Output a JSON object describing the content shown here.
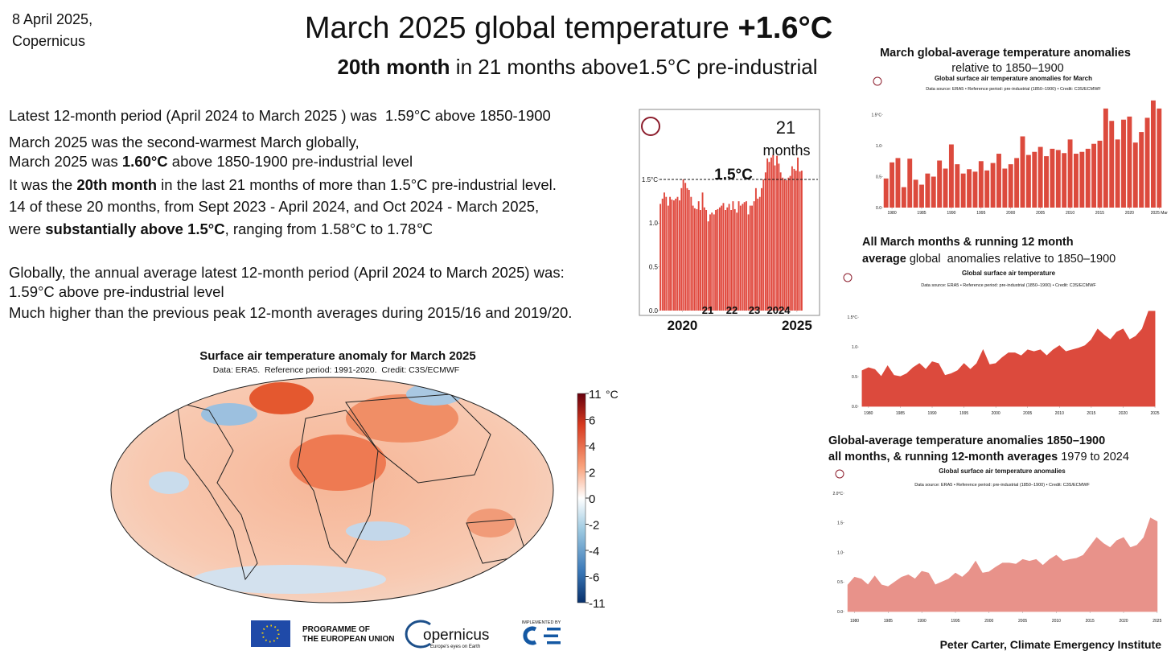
{
  "header": {
    "date": "8 April 2025,",
    "source": "Copernicus",
    "title": [
      {
        "text": "March 2025 global temperature ",
        "bold": false
      },
      {
        "text": "+1.6°C",
        "bold": true
      }
    ],
    "subtitle": [
      {
        "text": "20th month",
        "bold": true
      },
      {
        "text": " in 21 months above1.5°C pre-industrial",
        "bold": false
      }
    ]
  },
  "body": {
    "lines": [
      [
        {
          "text": "Latest 12-month period (April 2024 to March 2025 ) was  1.59°C above 1850-1900",
          "bold": false
        }
      ],
      [
        {
          "text": "March 2025 was the second-warmest March globally,",
          "bold": false
        }
      ],
      [
        {
          "text": "March 2025 was ",
          "bold": false
        },
        {
          "text": "1.60°C",
          "bold": true
        },
        {
          "text": " above 1850-1900 pre-industrial level",
          "bold": false
        }
      ],
      [
        {
          "text": "It was the ",
          "bold": false
        },
        {
          "text": "20th month",
          "bold": true
        },
        {
          "text": " in the last 21 months of more than 1.5°C pre-industrial level.",
          "bold": false
        }
      ],
      [
        {
          "text": "14 of these 20 months, from Sept 2023 - April 2024, and Oct 2024 - March 2025,",
          "bold": false
        }
      ],
      [
        {
          "text": "were ",
          "bold": false
        },
        {
          "text": "substantially above 1.5°C",
          "bold": true
        },
        {
          "text": ", ranging from 1.58°C to 1.78℃",
          "bold": false
        }
      ],
      [
        {
          "text": "Globally, the annual average latest 12-month period (April 2024 to March 2025) was:",
          "bold": false
        }
      ],
      [
        {
          "text": "1.59°C above pre-industrial level",
          "bold": false
        }
      ],
      [
        {
          "text": "Much higher than the previous peak 12-month averages during 2015/16 and 2019/20.",
          "bold": false
        }
      ]
    ]
  },
  "captions": [
    {
      "lines": [
        [
          {
            "text": "March global-average temperature anomalies",
            "bold": true
          }
        ],
        [
          {
            "text": "relative to 1850–1900",
            "bold": false
          }
        ]
      ]
    },
    {
      "lines": [
        [
          {
            "text": "All March months & running 12 month",
            "bold": true
          }
        ],
        [
          {
            "text": "average",
            "bold": true
          },
          {
            "text": " global  anomalies relative to 1850–1900",
            "bold": false
          }
        ]
      ]
    },
    {
      "lines": [
        [
          {
            "text": "Global-average temperature anomalies 1850–1900",
            "bold": true
          }
        ],
        [
          {
            "text": "all months, & running 12-month averages",
            "bold": true
          },
          {
            "text": " 1979 to 2024",
            "bold": false
          }
        ]
      ]
    }
  ],
  "credit": "Peter Carter, Climate Emergency Institute",
  "logos": {
    "eu": [
      "PROGRAMME OF",
      "THE EUROPEAN UNION"
    ],
    "copernicus": "opernicus",
    "copernicus_tagline": "Europe's eyes on Earth",
    "implemented": "IMPLEMENTED BY"
  },
  "chart_data": [
    {
      "type": "bar",
      "color": "#e0473c",
      "x": [
        2019.04,
        2019.13,
        2019.21,
        2019.29,
        2019.38,
        2019.46,
        2019.54,
        2019.63,
        2019.71,
        2019.79,
        2019.88,
        2019.96,
        2020.04,
        2020.13,
        2020.21,
        2020.29,
        2020.38,
        2020.46,
        2020.54,
        2020.63,
        2020.71,
        2020.79,
        2020.88,
        2020.96,
        2021.04,
        2021.13,
        2021.21,
        2021.29,
        2021.38,
        2021.46,
        2021.54,
        2021.63,
        2021.71,
        2021.79,
        2021.88,
        2021.96,
        2022.04,
        2022.13,
        2022.21,
        2022.29,
        2022.38,
        2022.46,
        2022.54,
        2022.63,
        2022.71,
        2022.79,
        2022.88,
        2022.96,
        2023.04,
        2023.13,
        2023.21,
        2023.29,
        2023.38,
        2023.46,
        2023.54,
        2023.63,
        2023.71,
        2023.79,
        2023.88,
        2023.96,
        2024.04,
        2024.13,
        2024.21,
        2024.29,
        2024.38,
        2024.46,
        2024.54,
        2024.63,
        2024.71,
        2024.79,
        2024.88,
        2024.96,
        2025.04,
        2025.13,
        2025.21
      ],
      "values": [
        1.22,
        1.28,
        1.35,
        1.3,
        1.2,
        1.3,
        1.27,
        1.26,
        1.28,
        1.3,
        1.26,
        1.4,
        1.5,
        1.46,
        1.4,
        1.38,
        1.3,
        1.2,
        1.17,
        1.16,
        1.25,
        1.15,
        1.35,
        1.18,
        1.15,
        1.02,
        1.1,
        1.12,
        1.1,
        1.15,
        1.16,
        1.18,
        1.2,
        1.23,
        1.15,
        1.18,
        1.22,
        1.15,
        1.25,
        1.16,
        1.12,
        1.25,
        1.2,
        1.22,
        1.24,
        1.25,
        1.1,
        1.2,
        1.2,
        1.25,
        1.4,
        1.28,
        1.3,
        1.4,
        1.5,
        1.58,
        1.74,
        1.7,
        1.75,
        1.78,
        1.66,
        1.77,
        1.68,
        1.58,
        1.52,
        1.5,
        1.49,
        1.52,
        1.54,
        1.65,
        1.62,
        1.6,
        1.75,
        1.59,
        1.6
      ],
      "xlim": [
        2019,
        2025.25
      ],
      "xticks": [
        2020,
        2025
      ],
      "ylim": [
        0,
        2.3
      ],
      "yticks": [
        {
          "value": 0,
          "label": "0.0"
        },
        0.5,
        {
          "value": 1,
          "label": "1.0"
        },
        {
          "value": 1.5,
          "label": "1.5°C"
        }
      ],
      "threshold": 1.5,
      "annotations": [
        "21",
        "months",
        "1.5°C"
      ],
      "year_labels": [
        "21",
        "22",
        "23",
        "2024"
      ]
    },
    {
      "type": "bar",
      "title": "Global surface air temperature anomalies for March",
      "subtitle": "Data source: ERA5 • Reference period: pre-industrial (1850–1900) • Credit: C3S/ECMWF",
      "color": "#dc4a3d",
      "x": [
        1979,
        1980,
        1981,
        1982,
        1983,
        1984,
        1985,
        1986,
        1987,
        1988,
        1989,
        1990,
        1991,
        1992,
        1993,
        1994,
        1995,
        1996,
        1997,
        1998,
        1999,
        2000,
        2001,
        2002,
        2003,
        2004,
        2005,
        2006,
        2007,
        2008,
        2009,
        2010,
        2011,
        2012,
        2013,
        2014,
        2015,
        2016,
        2017,
        2018,
        2019,
        2020,
        2021,
        2022,
        2023,
        2024,
        2025
      ],
      "values": [
        0.47,
        0.73,
        0.8,
        0.33,
        0.79,
        0.45,
        0.37,
        0.55,
        0.5,
        0.76,
        0.63,
        1.02,
        0.7,
        0.55,
        0.62,
        0.58,
        0.75,
        0.6,
        0.72,
        0.87,
        0.63,
        0.7,
        0.8,
        1.15,
        0.85,
        0.9,
        0.98,
        0.83,
        0.95,
        0.93,
        0.88,
        1.1,
        0.87,
        0.9,
        0.95,
        1.03,
        1.08,
        1.6,
        1.4,
        1.1,
        1.42,
        1.47,
        1.05,
        1.22,
        1.45,
        1.73,
        1.6
      ],
      "xlim": [
        1978.5,
        2025.5
      ],
      "xticks": [
        1980,
        1985,
        1990,
        1995,
        2000,
        2005,
        2010,
        2015,
        2020,
        {
          "value": 2025,
          "label": "2025 Mar"
        }
      ],
      "ylim": [
        0,
        1.65
      ],
      "yticks": [
        {
          "value": 0,
          "label": "0.0"
        },
        0.5,
        {
          "value": 1,
          "label": "1.0"
        },
        {
          "value": 1.5,
          "label": "1.5°C"
        }
      ]
    },
    {
      "type": "area",
      "title": "Global surface air temperature",
      "subtitle": "Data source: ERA5 • Reference period: pre-industrial (1850–1900) • Credit: C3S/ECMWF",
      "color": "#dc4a3d",
      "x": [
        1979,
        1980,
        1981,
        1982,
        1983,
        1984,
        1985,
        1986,
        1987,
        1988,
        1989,
        1990,
        1991,
        1992,
        1993,
        1994,
        1995,
        1996,
        1997,
        1998,
        1999,
        2000,
        2001,
        2002,
        2003,
        2004,
        2005,
        2006,
        2007,
        2008,
        2009,
        2010,
        2011,
        2012,
        2013,
        2014,
        2015,
        2016,
        2017,
        2018,
        2019,
        2020,
        2021,
        2022,
        2023,
        2024,
        2025
      ],
      "values": [
        0.6,
        0.65,
        0.62,
        0.5,
        0.68,
        0.52,
        0.5,
        0.55,
        0.65,
        0.72,
        0.62,
        0.75,
        0.72,
        0.52,
        0.55,
        0.6,
        0.72,
        0.62,
        0.72,
        0.95,
        0.7,
        0.72,
        0.82,
        0.9,
        0.9,
        0.85,
        0.95,
        0.92,
        0.95,
        0.85,
        0.95,
        1.02,
        0.92,
        0.95,
        0.98,
        1.02,
        1.12,
        1.3,
        1.2,
        1.12,
        1.25,
        1.3,
        1.12,
        1.18,
        1.3,
        1.6,
        1.6
      ],
      "xlim": [
        1978.5,
        2025.5
      ],
      "xticks": [
        1980,
        1985,
        1990,
        1995,
        2000,
        2005,
        2010,
        2015,
        2020,
        2025
      ],
      "ylim": [
        0,
        1.8
      ],
      "yticks": [
        {
          "value": 0,
          "label": "0.0"
        },
        0.5,
        {
          "value": 1,
          "label": "1.0"
        },
        {
          "value": 1.5,
          "label": "1.5°C"
        }
      ]
    },
    {
      "type": "area",
      "title": "Global surface air temperature anomalies",
      "subtitle": "Data source: ERA5 • Reference period: pre-industrial (1850–1900) • Credit: C3S/ECMWF",
      "color": "#e8928a",
      "x": [
        1979,
        1980,
        1981,
        1982,
        1983,
        1984,
        1985,
        1986,
        1987,
        1988,
        1989,
        1990,
        1991,
        1992,
        1993,
        1994,
        1995,
        1996,
        1997,
        1998,
        1999,
        2000,
        2001,
        2002,
        2003,
        2004,
        2005,
        2006,
        2007,
        2008,
        2009,
        2010,
        2011,
        2012,
        2013,
        2014,
        2015,
        2016,
        2017,
        2018,
        2019,
        2020,
        2021,
        2022,
        2023,
        2024,
        2025
      ],
      "values": [
        0.45,
        0.58,
        0.55,
        0.45,
        0.6,
        0.45,
        0.42,
        0.5,
        0.58,
        0.62,
        0.55,
        0.68,
        0.65,
        0.45,
        0.5,
        0.55,
        0.65,
        0.58,
        0.68,
        0.85,
        0.65,
        0.67,
        0.75,
        0.82,
        0.82,
        0.8,
        0.88,
        0.85,
        0.88,
        0.78,
        0.88,
        0.95,
        0.85,
        0.88,
        0.9,
        0.95,
        1.1,
        1.25,
        1.15,
        1.08,
        1.2,
        1.25,
        1.08,
        1.12,
        1.25,
        1.58,
        1.52
      ],
      "xlim": [
        1978.5,
        2025.5
      ],
      "xticks": [
        1980,
        1985,
        1990,
        1995,
        2000,
        2005,
        2010,
        2015,
        2020,
        2025
      ],
      "ylim": [
        0,
        2.0
      ],
      "yticks": [
        {
          "value": 0,
          "label": "0.0"
        },
        0.5,
        {
          "value": 1,
          "label": "1.0"
        },
        1.5,
        {
          "value": 2,
          "label": "2.0°C"
        }
      ]
    },
    {
      "type": "map",
      "title": "Surface air temperature anomaly for March 2025",
      "subtitle": "Data: ERA5.  Reference period: 1991-2020.  Credit: C3S/ECMWF",
      "colorbar_ticks": [
        11,
        6,
        4,
        2,
        0,
        -2,
        -4,
        -6,
        -11
      ],
      "colorbar_unit": "°C"
    }
  ]
}
